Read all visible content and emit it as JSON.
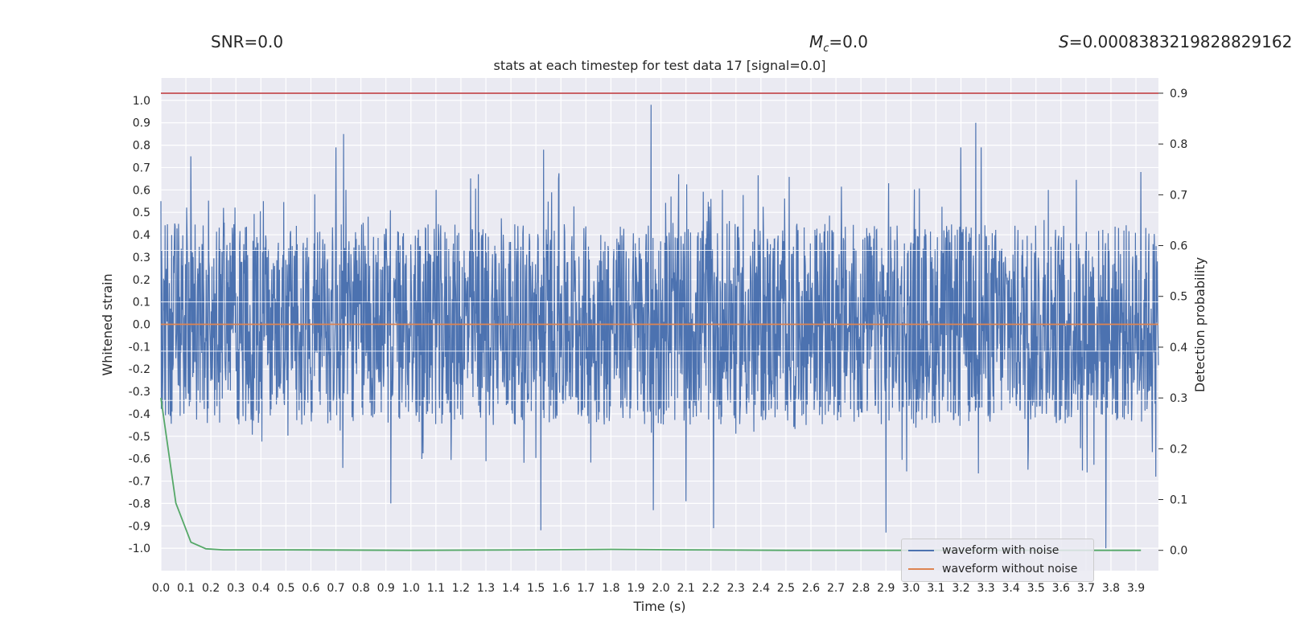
{
  "header": {
    "snr_label": "SNR=0.0",
    "mc_prefix": "M",
    "mc_sub": "c",
    "mc_value": "=0.0",
    "s_prefix": "S",
    "s_value": "=0.0008383219828829162"
  },
  "chart_data": {
    "type": "line",
    "title": "stats at each timestep for test data 17 [signal=0.0]",
    "xlabel": "Time (s)",
    "ylabel_left": "Whitened strain",
    "ylabel_right": "Detection probability",
    "xlim": [
      0.0,
      3.99
    ],
    "ylim_left": [
      -1.1,
      1.1
    ],
    "ylim_right": [
      -0.04,
      0.93
    ],
    "x_ticks": [
      "0.0",
      "0.1",
      "0.2",
      "0.3",
      "0.4",
      "0.5",
      "0.6",
      "0.7",
      "0.8",
      "0.9",
      "1.0",
      "1.1",
      "1.2",
      "1.3",
      "1.4",
      "1.5",
      "1.6",
      "1.7",
      "1.8",
      "1.9",
      "2.0",
      "2.1",
      "2.2",
      "2.3",
      "2.4",
      "2.5",
      "2.6",
      "2.7",
      "2.8",
      "2.9",
      "3.0",
      "3.1",
      "3.2",
      "3.3",
      "3.4",
      "3.5",
      "3.6",
      "3.7",
      "3.8",
      "3.9"
    ],
    "y_ticks_left": [
      "1.0",
      "0.9",
      "0.8",
      "0.7",
      "0.6",
      "0.5",
      "0.4",
      "0.3",
      "0.2",
      "0.1",
      "0.0",
      "-0.1",
      "-0.2",
      "-0.3",
      "-0.4",
      "-0.5",
      "-0.6",
      "-0.7",
      "-0.8",
      "-0.9",
      "-1.0"
    ],
    "y_ticks_right": [
      "0.9",
      "0.8",
      "0.7",
      "0.6",
      "0.5",
      "0.4",
      "0.3",
      "0.2",
      "0.1",
      "0.0"
    ],
    "grid": true,
    "legend_position": "bottom-right",
    "series": [
      {
        "name": "waveform with noise",
        "axis": "left",
        "color": "#4c72b0",
        "description_points": {
          "x": [
            0.0,
            0.12,
            0.25,
            0.41,
            0.7,
            0.73,
            0.74,
            0.92,
            1.1,
            1.27,
            1.52,
            1.53,
            1.59,
            1.96,
            1.97,
            2.1,
            2.2,
            2.21,
            2.9,
            2.91,
            3.2,
            3.26,
            3.28,
            3.55,
            3.78,
            3.92,
            3.98
          ],
          "y": [
            0.55,
            0.75,
            0.52,
            0.55,
            0.79,
            0.85,
            0.6,
            -0.8,
            0.6,
            0.67,
            -0.92,
            0.78,
            0.65,
            0.98,
            -0.83,
            -0.79,
            0.56,
            -0.91,
            -0.93,
            0.63,
            0.79,
            0.9,
            0.79,
            0.6,
            -1.0,
            0.68,
            -0.68
          ]
        },
        "amplitude_envelope": 0.45
      },
      {
        "name": "waveform without noise",
        "axis": "left",
        "color": "#dd8452",
        "x": [
          0.0,
          3.99
        ],
        "y": [
          0.0,
          0.0
        ]
      },
      {
        "name": "",
        "axis": "right",
        "color": "#55a868",
        "x": [
          0.0,
          0.06,
          0.12,
          0.18,
          0.25,
          0.5,
          1.0,
          1.5,
          1.8,
          2.1,
          2.5,
          3.0,
          3.5,
          3.92
        ],
        "y": [
          0.3,
          0.093,
          0.016,
          0.003,
          0.001,
          0.001,
          0.0,
          0.001,
          0.002,
          0.001,
          0.0,
          0.0,
          0.0,
          0.0
        ]
      },
      {
        "name": "",
        "axis": "right",
        "color": "#c44e52",
        "x": [
          0.0,
          3.99
        ],
        "y": [
          0.9,
          0.9
        ]
      }
    ]
  }
}
